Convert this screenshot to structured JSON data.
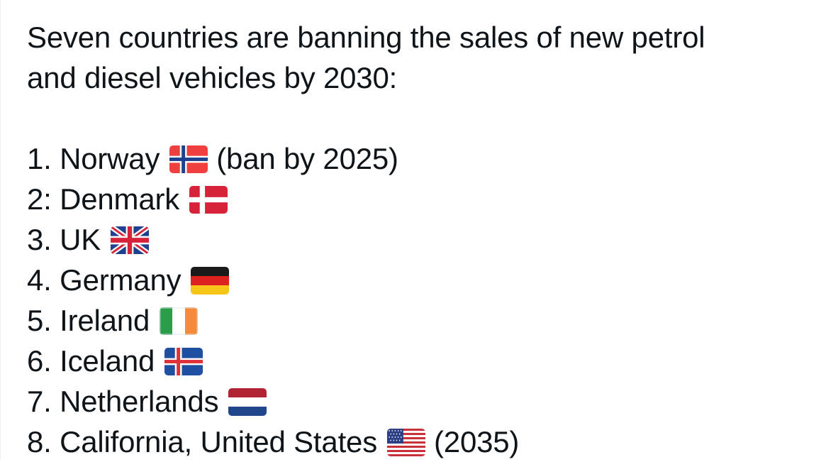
{
  "tweet": {
    "intro_line1": "Seven countries are banning the sales of new petrol",
    "intro_line2": "and diesel vehicles by 2030:",
    "items": [
      {
        "label": "1. Norway",
        "flag": "norway-flag-icon",
        "suffix": "(ban by 2025)"
      },
      {
        "label": "2: Denmark",
        "flag": "denmark-flag-icon",
        "suffix": ""
      },
      {
        "label": "3. UK",
        "flag": "uk-flag-icon",
        "suffix": ""
      },
      {
        "label": "4. Germany",
        "flag": "germany-flag-icon",
        "suffix": ""
      },
      {
        "label": "5. Ireland",
        "flag": "ireland-flag-icon",
        "suffix": ""
      },
      {
        "label": "6. Iceland",
        "flag": "iceland-flag-icon",
        "suffix": ""
      },
      {
        "label": "7. Netherlands",
        "flag": "netherlands-flag-icon",
        "suffix": ""
      },
      {
        "label": "8. California, United States",
        "flag": "usa-flag-icon",
        "suffix": "(2035)"
      }
    ]
  },
  "colors": {
    "text": "#0f1419",
    "norway_red": "#ef3f3f",
    "norway_blue": "#1f3f8f",
    "denmark_red": "#d6233a",
    "uk_blue": "#1f3f8f",
    "uk_red": "#d6233a",
    "germany_black": "#1a1a1a",
    "germany_red": "#dd2020",
    "germany_gold": "#f5c518",
    "ireland_green": "#2b9c4a",
    "ireland_orange": "#f58a3a",
    "iceland_blue": "#1f4fa0",
    "iceland_red": "#e0303a",
    "netherlands_red": "#b22334",
    "netherlands_blue": "#21468b",
    "usa_red": "#c8303a",
    "usa_blue": "#2c3e86"
  }
}
